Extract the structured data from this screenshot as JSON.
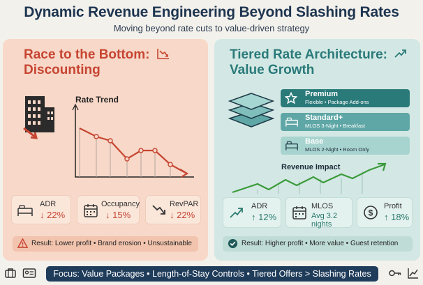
{
  "header": {
    "title": "Dynamic Revenue Engineering Beyond Slashing Rates",
    "subtitle": "Moving beyond rate cuts to value-driven strategy"
  },
  "left_panel": {
    "title_line1": "Race to the Bottom:",
    "title_line2": "Discounting",
    "chart_title": "Rate Trend",
    "metrics": [
      {
        "label": "ADR",
        "value": "↓ 22%",
        "icon": "bed-icon"
      },
      {
        "label": "Occupancy",
        "value": "↓ 15%",
        "icon": "calendar-icon"
      },
      {
        "label": "RevPAR",
        "value": "↓ 22%",
        "icon": "down-trend-icon"
      }
    ],
    "result": "Result: Lower profit • Brand erosion • Unsustainable"
  },
  "right_panel": {
    "title_line1": "Tiered Rate Architecture:",
    "title_line2": "Value Growth",
    "tiers": [
      {
        "name": "Premium",
        "desc": "Flexible • Package Add-ons",
        "icon": "star-icon"
      },
      {
        "name": "Standard+",
        "desc": "MLOS 3-Night • Breakfast",
        "icon": "bed-icon"
      },
      {
        "name": "Base",
        "desc": "MLOS 2-Night • Room Only",
        "icon": "bed-icon"
      }
    ],
    "chart_title": "Revenue Impact",
    "metrics": [
      {
        "label": "ADR",
        "value": "↑ 12%",
        "icon": "up-trend-icon"
      },
      {
        "label": "MLOS",
        "value": "Avg 3.2 nights",
        "icon": "calendar-icon"
      },
      {
        "label": "Profit",
        "value": "↑ 18%",
        "icon": "dollar-icon"
      }
    ],
    "result": "Result: Higher profit • More value • Guest retention"
  },
  "footer": {
    "text": "Focus: Value Packages • Length-of-Stay Controls • Tiered Offers > Slashing Rates"
  },
  "colors": {
    "left_accent": "#c64532",
    "right_accent": "#2a7a7a",
    "footer_bg": "#1f3c5a",
    "growth_green": "#3c9a3c"
  }
}
